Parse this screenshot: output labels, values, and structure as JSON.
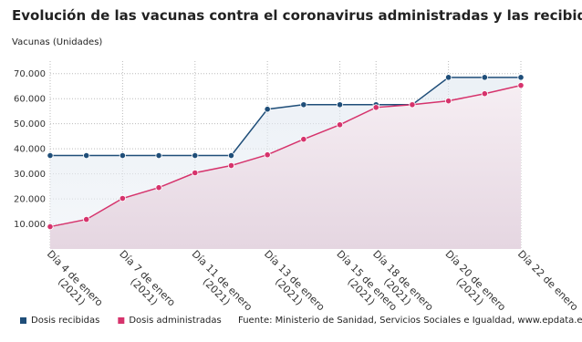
{
  "chart_data": {
    "type": "line",
    "title": "Evolución de las vacunas contra el coronavirus administradas y las recibidas en Galicia",
    "y_label": "Vacunas (Unidades)",
    "source": "Fuente: Ministerio de Sanidad, Servicios Sociales e Igualdad, www.epdata.es",
    "categories": [
      "Día 4 de enero (2021)",
      null,
      "Día 7 de enero (2021)",
      null,
      "Día 11 de enero (2021)",
      null,
      "Día 13 de enero (2021)",
      null,
      "Día 15 de enero (2021)",
      "Día 18 de enero (2021)",
      null,
      "Día 20 de enero (2021)",
      null,
      "Día 22 de enero"
    ],
    "series": [
      {
        "name": "Dosis recibidas",
        "color": "#1f4e79",
        "values": [
          37300,
          37300,
          37300,
          37300,
          37300,
          37300,
          55800,
          57600,
          57600,
          57600,
          57600,
          68500,
          68500,
          68500
        ]
      },
      {
        "name": "Dosis administradas",
        "color": "#d6336c",
        "values": [
          8900,
          11800,
          20200,
          24500,
          30400,
          33300,
          37600,
          43800,
          49600,
          56500,
          57600,
          59100,
          62000,
          65300
        ]
      }
    ],
    "ylim": [
      0,
      75000
    ],
    "yticks": [
      {
        "value": 10000,
        "label": "10.000"
      },
      {
        "value": 20000,
        "label": "20.000"
      },
      {
        "value": 30000,
        "label": "30.000"
      },
      {
        "value": 40000,
        "label": "40.000"
      },
      {
        "value": 50000,
        "label": "50.000"
      },
      {
        "value": 60000,
        "label": "60.000"
      },
      {
        "value": 70000,
        "label": "70.000"
      }
    ],
    "grid": true
  }
}
